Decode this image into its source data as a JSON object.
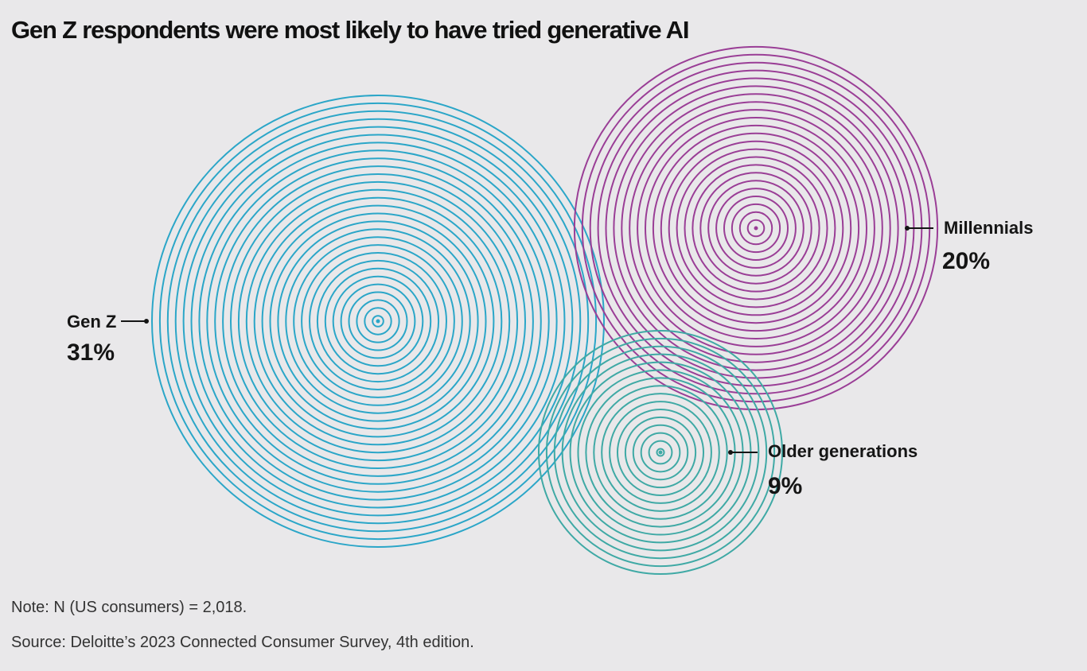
{
  "title": "Gen Z respondents were most likely to have tried generative AI",
  "chart_data": {
    "type": "bubble",
    "unit": "%",
    "series": [
      {
        "name": "Gen Z",
        "value": 31,
        "label": "31%",
        "color": "#2ba6c8"
      },
      {
        "name": "Millennials",
        "value": 20,
        "label": "20%",
        "color": "#9a3e96"
      },
      {
        "name": "Older generations",
        "value": 9,
        "label": "9%",
        "color": "#3fa9a5"
      }
    ]
  },
  "footer": {
    "note": "Note: N (US consumers) = 2,018.",
    "source": "Source: Deloitte’s 2023 Connected Consumer Survey, 4th edition."
  }
}
